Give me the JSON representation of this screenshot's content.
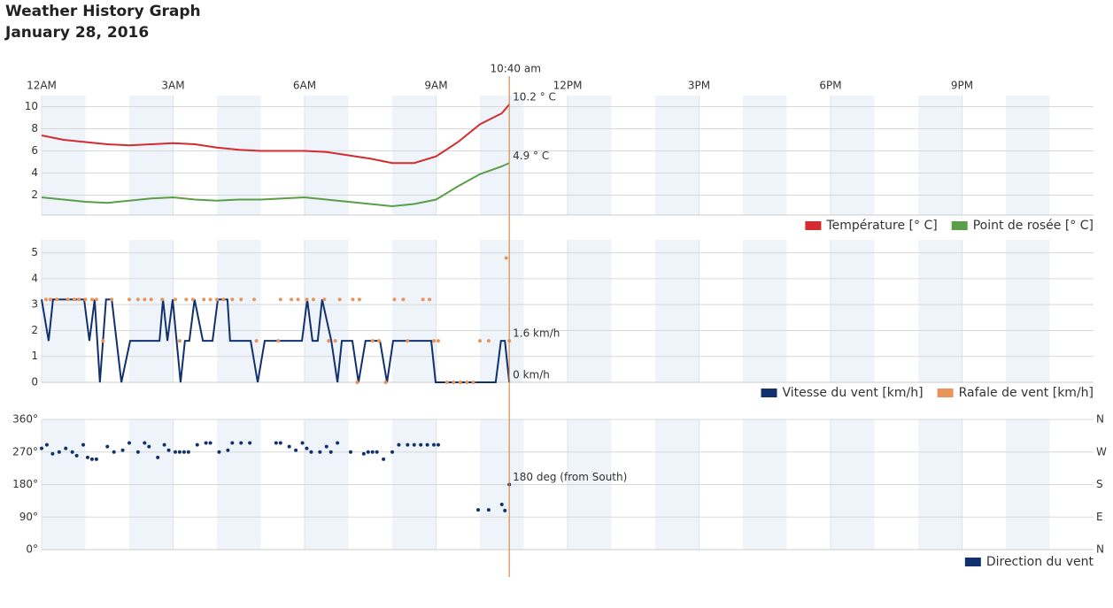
{
  "header": {
    "title": "Weather History Graph",
    "date": "January 28, 2016"
  },
  "cursor": {
    "x": 10.67,
    "label": "10:40 am"
  },
  "chart_data": [
    {
      "type": "line",
      "xlim": [
        0,
        24
      ],
      "xticks": [
        {
          "value": 0,
          "label": "12AM"
        },
        {
          "value": 3,
          "label": "3AM"
        },
        {
          "value": 6,
          "label": "6AM"
        },
        {
          "value": 9,
          "label": "9AM"
        },
        {
          "value": 12,
          "label": "12PM"
        },
        {
          "value": 15,
          "label": "3PM"
        },
        {
          "value": 18,
          "label": "6PM"
        },
        {
          "value": 21,
          "label": "9PM"
        }
      ],
      "ylim": [
        0.2,
        11
      ],
      "yticks": [
        2,
        4,
        6,
        8,
        10
      ],
      "grid": true,
      "x": [
        0,
        0.5,
        1,
        1.5,
        2,
        2.5,
        3,
        3.5,
        4,
        4.5,
        5,
        5.5,
        6,
        6.5,
        7,
        7.5,
        8,
        8.5,
        9,
        9.5,
        10,
        10.5,
        10.67
      ],
      "series": [
        {
          "name": "Température [° C]",
          "color": "#d42b2f",
          "end_label": "10.2 ° C",
          "values": [
            7.4,
            7.0,
            6.8,
            6.6,
            6.5,
            6.6,
            6.7,
            6.6,
            6.3,
            6.1,
            6.0,
            6.0,
            6.0,
            5.9,
            5.6,
            5.3,
            4.9,
            4.9,
            5.5,
            6.8,
            8.4,
            9.4,
            10.2
          ]
        },
        {
          "name": "Point de rosée [° C]",
          "color": "#5a9e48",
          "end_label": "4.9 ° C",
          "values": [
            1.8,
            1.6,
            1.4,
            1.3,
            1.5,
            1.7,
            1.8,
            1.6,
            1.5,
            1.6,
            1.6,
            1.7,
            1.8,
            1.6,
            1.4,
            1.2,
            1.0,
            1.2,
            1.6,
            2.8,
            3.9,
            4.6,
            4.9
          ]
        }
      ]
    },
    {
      "type": "line",
      "ylim": [
        0,
        5.5
      ],
      "yticks": [
        0,
        1,
        2,
        3,
        4,
        5
      ],
      "grid": true,
      "series": [
        {
          "name": "Vitesse du vent [km/h]",
          "color": "#11306e",
          "end_label": "0 km/h",
          "type": "line",
          "x": [
            0,
            0.16,
            0.26,
            0.97,
            1.09,
            1.21,
            1.33,
            1.47,
            1.6,
            1.82,
            2.02,
            2.69,
            2.77,
            2.87,
            2.99,
            3.17,
            3.27,
            3.37,
            3.49,
            3.68,
            3.9,
            4.02,
            4.24,
            4.3,
            4.77,
            4.93,
            5.09,
            5.94,
            6.06,
            6.18,
            6.3,
            6.4,
            6.61,
            6.75,
            6.85,
            7.09,
            7.23,
            7.39,
            7.72,
            7.88,
            8.02,
            8.89,
            8.99,
            10.36,
            10.48,
            10.57,
            10.67
          ],
          "values": [
            3.2,
            1.6,
            3.2,
            3.2,
            1.6,
            3.2,
            0,
            3.2,
            3.2,
            0,
            1.6,
            1.6,
            3.2,
            1.6,
            3.2,
            0,
            1.6,
            1.6,
            3.2,
            1.6,
            1.6,
            3.2,
            3.2,
            1.6,
            1.6,
            0,
            1.6,
            1.6,
            3.2,
            1.6,
            1.6,
            3.2,
            1.6,
            0,
            1.6,
            1.6,
            0,
            1.6,
            1.6,
            0,
            1.6,
            1.6,
            0,
            0,
            1.6,
            1.6,
            0
          ]
        },
        {
          "name": "Rafale de vent [km/h]",
          "color": "#e9945b",
          "end_label": "1.6 km/h",
          "type": "scatter",
          "x": [
            0.1,
            0.2,
            0.35,
            0.6,
            0.75,
            0.85,
            1.0,
            1.15,
            1.25,
            1.4,
            1.6,
            2.0,
            2.2,
            2.35,
            2.5,
            2.75,
            3.05,
            3.15,
            3.3,
            3.45,
            3.7,
            3.85,
            4.0,
            4.15,
            4.35,
            4.55,
            4.85,
            4.9,
            5.4,
            5.45,
            5.7,
            5.85,
            6.05,
            6.2,
            6.45,
            6.55,
            6.7,
            6.8,
            7.1,
            7.2,
            7.25,
            7.55,
            7.7,
            7.85,
            8.05,
            8.25,
            8.35,
            8.7,
            8.85,
            8.95,
            9.05,
            9.25,
            9.4,
            9.55,
            9.7,
            9.85,
            10.0,
            10.2,
            10.6,
            10.67
          ],
          "values": [
            3.2,
            3.2,
            3.2,
            3.2,
            3.2,
            3.2,
            3.2,
            3.2,
            3.2,
            1.6,
            3.2,
            3.2,
            3.2,
            3.2,
            3.2,
            3.2,
            3.2,
            1.6,
            3.2,
            3.2,
            3.2,
            3.2,
            3.2,
            3.2,
            3.2,
            3.2,
            3.2,
            1.6,
            1.6,
            3.2,
            3.2,
            3.2,
            3.2,
            3.2,
            3.2,
            1.6,
            1.6,
            3.2,
            3.2,
            0,
            3.2,
            1.6,
            1.6,
            0,
            3.2,
            3.2,
            1.6,
            3.2,
            3.2,
            1.6,
            1.6,
            0,
            0,
            0,
            0,
            0,
            1.6,
            1.6,
            4.8,
            1.6
          ]
        }
      ]
    },
    {
      "type": "scatter",
      "ylim": [
        0,
        360
      ],
      "yticks": [
        {
          "value": 0,
          "label": "0°"
        },
        {
          "value": 90,
          "label": "90°"
        },
        {
          "value": 180,
          "label": "180°"
        },
        {
          "value": 270,
          "label": "270°"
        },
        {
          "value": 360,
          "label": "360°"
        }
      ],
      "y2lim": [
        0,
        360
      ],
      "y2ticks": [
        {
          "value": 0,
          "label": "N"
        },
        {
          "value": 90,
          "label": "E"
        },
        {
          "value": 180,
          "label": "S"
        },
        {
          "value": 270,
          "label": "W"
        },
        {
          "value": 360,
          "label": "N"
        }
      ],
      "grid": true,
      "series": [
        {
          "name": "Direction du vent",
          "color": "#11306e",
          "end_label": "180 deg (from South)",
          "x": [
            0,
            0.12,
            0.25,
            0.4,
            0.55,
            0.7,
            0.8,
            0.95,
            1.05,
            1.15,
            1.25,
            1.5,
            1.65,
            1.85,
            2.0,
            2.2,
            2.35,
            2.45,
            2.65,
            2.8,
            2.9,
            3.05,
            3.15,
            3.25,
            3.35,
            3.55,
            3.75,
            3.85,
            4.05,
            4.25,
            4.35,
            4.55,
            4.75,
            5.35,
            5.45,
            5.65,
            5.8,
            5.95,
            6.05,
            6.15,
            6.35,
            6.5,
            6.6,
            6.75,
            7.05,
            7.35,
            7.45,
            7.55,
            7.65,
            7.8,
            8.0,
            8.15,
            8.35,
            8.5,
            8.65,
            8.8,
            8.95,
            9.05,
            9.96,
            10.2,
            10.5,
            10.57,
            10.67
          ],
          "values": [
            280,
            290,
            265,
            270,
            280,
            270,
            260,
            290,
            255,
            250,
            250,
            285,
            270,
            275,
            295,
            270,
            295,
            285,
            255,
            290,
            275,
            270,
            270,
            270,
            270,
            290,
            295,
            295,
            270,
            275,
            295,
            295,
            295,
            295,
            295,
            285,
            275,
            295,
            280,
            270,
            270,
            285,
            270,
            295,
            270,
            265,
            270,
            270,
            270,
            250,
            270,
            290,
            290,
            290,
            290,
            290,
            290,
            290,
            110,
            110,
            125,
            108,
            180
          ]
        }
      ]
    }
  ]
}
